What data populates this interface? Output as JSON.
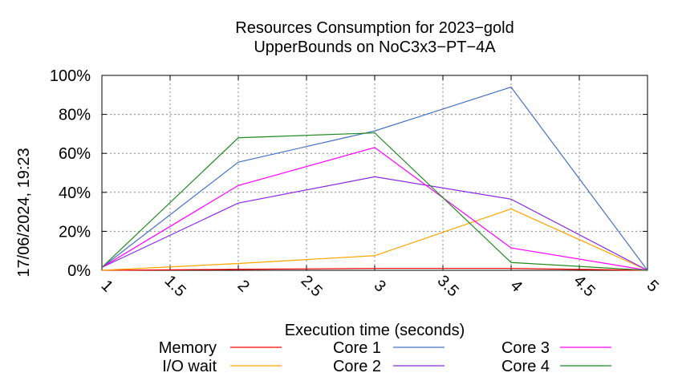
{
  "chart_data": {
    "type": "line",
    "title_line1": "Resources Consumption for 2023−gold",
    "title_line2": "UpperBounds on NoC3x3−PT−4A",
    "xlabel": "Execution time (seconds)",
    "ylabel": "",
    "side_label": "17/06/2024, 19:23",
    "xlim": [
      1,
      5
    ],
    "ylim": [
      0,
      100
    ],
    "x_ticks": [
      1,
      1.5,
      2,
      2.5,
      3,
      3.5,
      4,
      4.5,
      5
    ],
    "x_tick_labels": [
      "1",
      "1.5",
      "2",
      "2.5",
      "3",
      "3.5",
      "4",
      "4.5",
      "5"
    ],
    "y_ticks": [
      0,
      20,
      40,
      60,
      80,
      100
    ],
    "y_tick_labels": [
      "0%",
      "20%",
      "40%",
      "60%",
      "80%",
      "100%"
    ],
    "grid": true,
    "legend_position": "bottom",
    "x": [
      1,
      2,
      3,
      4,
      5
    ],
    "series": [
      {
        "name": "Memory",
        "color": "#ff0000",
        "values": [
          0,
          0.5,
          1,
          1,
          0
        ]
      },
      {
        "name": "I/O wait",
        "color": "#ffa500",
        "values": [
          0,
          3.5,
          7.5,
          31.5,
          0
        ]
      },
      {
        "name": "Core 1",
        "color": "#4472c4",
        "values": [
          1.5,
          55.5,
          71.5,
          94,
          0
        ]
      },
      {
        "name": "Core 2",
        "color": "#8a2be2",
        "values": [
          1.5,
          34.5,
          48,
          36.5,
          0
        ]
      },
      {
        "name": "Core 3",
        "color": "#ff00ff",
        "values": [
          1.5,
          43.5,
          63,
          11.5,
          0
        ]
      },
      {
        "name": "Core 4",
        "color": "#228b22",
        "values": [
          1.5,
          68,
          70.5,
          4,
          0
        ]
      }
    ]
  }
}
